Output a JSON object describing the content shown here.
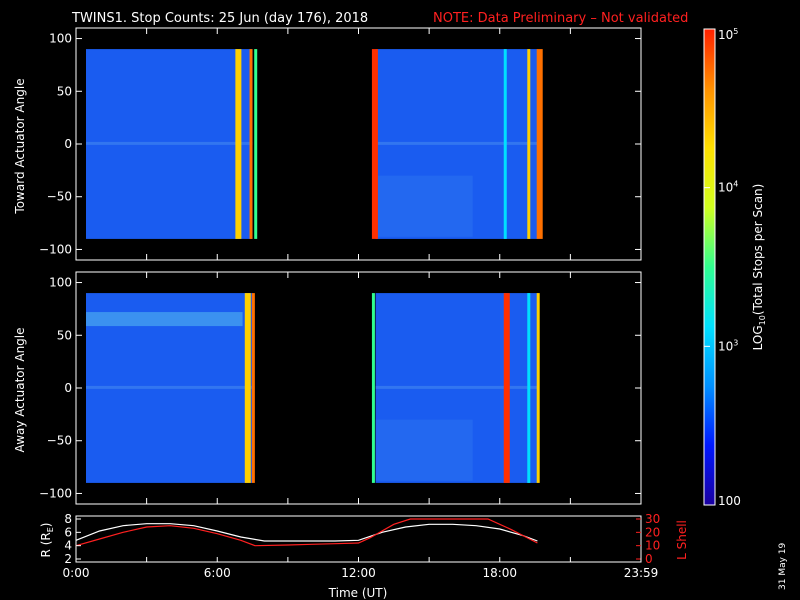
{
  "header": {
    "title": "TWINS1. Stop Counts: 25 Jun (day 176), 2018",
    "note": "NOTE: Data Preliminary – Not validated",
    "note_color": "#ff2020"
  },
  "stamp": "31 May 19",
  "chart_data": [
    {
      "type": "heatmap",
      "panel": "toward",
      "ylabel": "Toward Actuator Angle",
      "ylim": [
        -110,
        110
      ],
      "yticks": [
        "100",
        "50",
        "0",
        "−50",
        "−100"
      ],
      "xlim": [
        0,
        24
      ],
      "angle_range": [
        -90,
        90
      ],
      "data_blocks_hours": [
        [
          0.0,
          7.5
        ],
        [
          12.3,
          19.6
        ]
      ],
      "bright_stripes_hours": [
        6.6,
        7.2,
        7.4,
        12.4,
        18.0,
        19.0,
        19.4
      ],
      "grid": true
    },
    {
      "type": "heatmap",
      "panel": "away",
      "ylabel": "Away Actuator Angle",
      "ylim": [
        -110,
        110
      ],
      "yticks": [
        "100",
        "50",
        "0",
        "−50",
        "−100"
      ],
      "xlim": [
        0,
        24
      ],
      "angle_range": [
        -90,
        90
      ],
      "data_blocks_hours": [
        [
          0.0,
          7.5
        ],
        [
          12.3,
          19.6
        ]
      ],
      "bright_stripes_hours": [
        7.0,
        7.3,
        12.4,
        18.0,
        19.0,
        19.4
      ],
      "grid": true
    },
    {
      "type": "line",
      "panel": "orbit",
      "xlabel": "Time (UT)",
      "xticks": [
        "0:00",
        "6:00",
        "12:00",
        "18:00",
        "23:59"
      ],
      "xtick_hours": [
        0,
        6,
        12,
        18,
        24
      ],
      "ylabel_left": "R (R",
      "ylabel_left_sub": "E",
      "ylabel_left_end": ")",
      "ylabel_right": "L Shell",
      "yticks_left": [
        "8",
        "6",
        "4",
        "2"
      ],
      "yticks_right": [
        "30",
        "20",
        "10",
        "0"
      ],
      "ylim_left": [
        2,
        8
      ],
      "ylim_right": [
        0,
        30
      ],
      "series": [
        {
          "color": "#ffffff",
          "x": [
            0,
            1,
            2,
            3,
            4,
            5,
            6,
            7,
            8,
            9,
            10,
            11,
            12,
            13,
            14,
            15,
            16,
            17,
            18,
            19,
            19.6
          ],
          "y": [
            4.8,
            6.2,
            7.0,
            7.3,
            7.3,
            7.0,
            6.2,
            5.3,
            4.7,
            4.7,
            4.7,
            4.7,
            4.8,
            6.0,
            6.8,
            7.2,
            7.2,
            7.0,
            6.5,
            5.5,
            4.7
          ]
        },
        {
          "color": "#ff2020",
          "x": [
            0,
            1,
            2,
            3,
            4,
            5,
            6,
            7,
            7.6,
            9,
            10,
            11,
            12,
            12.5,
            13.5,
            14.2,
            17.5,
            18.5,
            19.6
          ],
          "y": [
            10.0,
            15.0,
            20.0,
            24.0,
            25.0,
            23.0,
            19.0,
            14.0,
            10.0,
            10.5,
            11.0,
            11.5,
            12.0,
            16.0,
            26.0,
            30.0,
            30.0,
            22.0,
            12.0
          ]
        }
      ]
    }
  ],
  "colorbar": {
    "label": "LOG",
    "label_sub": "10",
    "label_end": "(Total Stops per Scan)",
    "ticks": [
      "10",
      "10",
      "10",
      "100"
    ],
    "tick_exps": [
      "5",
      "4",
      "3",
      ""
    ],
    "tick_values": [
      100000,
      10000,
      1000,
      100
    ],
    "range": [
      100,
      100000
    ],
    "stops": [
      "#1a00a0",
      "#0018ff",
      "#0090ff",
      "#00e0ff",
      "#30ff90",
      "#d0ff20",
      "#ffe000",
      "#ff9000",
      "#ff2000"
    ]
  }
}
